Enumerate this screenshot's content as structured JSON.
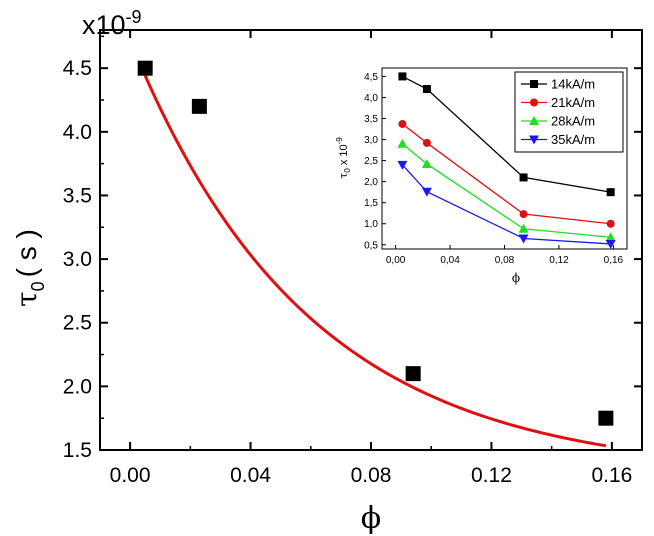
{
  "chart_data": [
    {
      "type": "scatter",
      "multiplier_label": "x10",
      "multiplier_exp": "-9",
      "ylabel_symbol": "τ",
      "ylabel_sub": "0",
      "ylabel_unit": "( s )",
      "xlabel": "ϕ",
      "xlim": [
        -0.01,
        0.17
      ],
      "ylim": [
        1.5,
        4.8
      ],
      "xticks": [
        "0.00",
        "0.04",
        "0.08",
        "0.12",
        "0.16"
      ],
      "xtick_values": [
        0.0,
        0.04,
        0.08,
        0.12,
        0.16
      ],
      "yticks": [
        "1.5",
        "2.0",
        "2.5",
        "3.0",
        "3.5",
        "4.0",
        "4.5"
      ],
      "ytick_values": [
        1.5,
        2.0,
        2.5,
        3.0,
        3.5,
        4.0,
        4.5
      ],
      "points": [
        {
          "x": 0.005,
          "y": 4.5
        },
        {
          "x": 0.023,
          "y": 4.2
        },
        {
          "x": 0.094,
          "y": 2.1
        },
        {
          "x": 0.158,
          "y": 1.75
        }
      ],
      "fit": {
        "x_start": 0.005,
        "x_end": 0.158,
        "y0": 1.3,
        "a": 3.42,
        "b": 17.0,
        "color": "#e01010"
      },
      "marker_color": "#000000"
    },
    {
      "type": "line",
      "ylabel": "τ",
      "ylabel_sub": "0",
      "ylabel_rest": " x 10",
      "ylabel_exp": "-9",
      "xlabel": "ϕ",
      "xlim": [
        -0.01,
        0.17
      ],
      "ylim": [
        0.4,
        4.7
      ],
      "xticks": [
        "0,00",
        "0,04",
        "0,08",
        "0,12",
        "0,16"
      ],
      "xtick_values": [
        0.0,
        0.04,
        0.08,
        0.12,
        0.16
      ],
      "yticks": [
        "0,5",
        "1,0",
        "1,5",
        "2,0",
        "2,5",
        "3,0",
        "3,5",
        "4,0",
        "4,5"
      ],
      "ytick_values": [
        0.5,
        1.0,
        1.5,
        2.0,
        2.5,
        3.0,
        3.5,
        4.0,
        4.5
      ],
      "x": [
        0.005,
        0.023,
        0.094,
        0.158
      ],
      "series": [
        {
          "name": "14kA/m",
          "values": [
            4.5,
            4.2,
            2.1,
            1.75
          ],
          "color": "#000000",
          "marker": "square"
        },
        {
          "name": "21kA/m",
          "values": [
            3.37,
            2.92,
            1.23,
            1.0
          ],
          "color": "#e01010",
          "marker": "circle"
        },
        {
          "name": "28kA/m",
          "values": [
            2.9,
            2.42,
            0.88,
            0.68
          ],
          "color": "#22dd22",
          "marker": "triangle-up"
        },
        {
          "name": "35kA/m",
          "values": [
            2.4,
            1.76,
            0.65,
            0.52
          ],
          "color": "#1a1aee",
          "marker": "triangle-down"
        }
      ]
    }
  ]
}
